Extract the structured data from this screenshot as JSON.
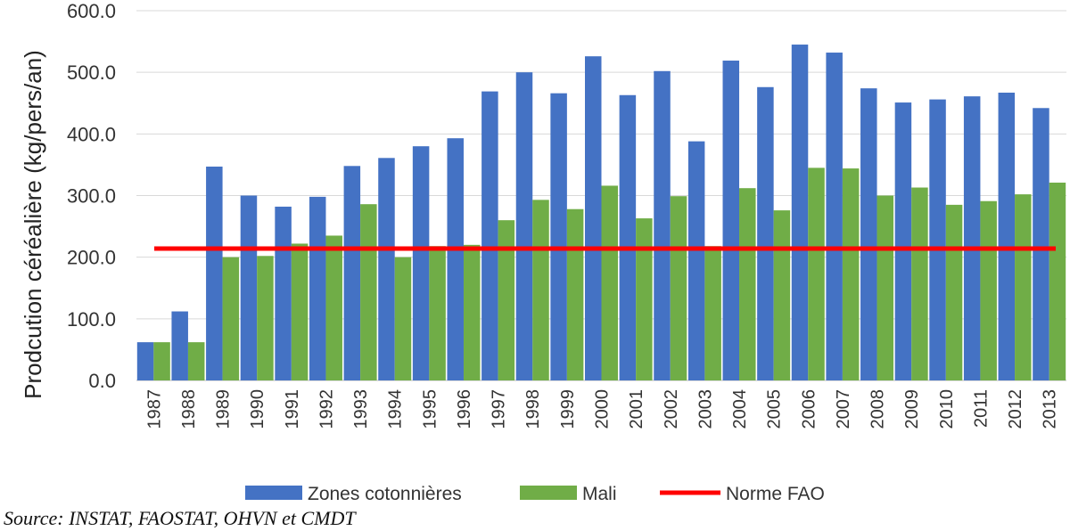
{
  "chart_data": {
    "type": "bar",
    "title": "",
    "xlabel": "",
    "ylabel": "Prodcution céréalière (kg/pers/an)",
    "ylim": [
      0,
      600
    ],
    "yticks": [
      "0.0",
      "100.0",
      "200.0",
      "300.0",
      "400.0",
      "500.0",
      "600.0"
    ],
    "grid": true,
    "legend_position": "bottom",
    "categories": [
      "1987",
      "1988",
      "1989",
      "1990",
      "1991",
      "1992",
      "1993",
      "1994",
      "1995",
      "1996",
      "1997",
      "1998",
      "1999",
      "2000",
      "2001",
      "2002",
      "2003",
      "2004",
      "2005",
      "2006",
      "2007",
      "2008",
      "2009",
      "2010",
      "2011",
      "2012",
      "2013"
    ],
    "series": [
      {
        "name": "Zones cotonnières",
        "color": "#4472C4",
        "values": [
          62,
          112,
          347,
          300,
          282,
          298,
          348,
          361,
          380,
          393,
          469,
          500,
          466,
          526,
          463,
          502,
          388,
          519,
          476,
          545,
          532,
          474,
          451,
          456,
          461,
          467,
          442
        ]
      },
      {
        "name": "Mali",
        "color": "#70AD47",
        "values": [
          62,
          62,
          200,
          202,
          222,
          235,
          286,
          200,
          218,
          220,
          260,
          293,
          278,
          316,
          263,
          299,
          218,
          312,
          276,
          345,
          344,
          300,
          313,
          285,
          291,
          302,
          321
        ]
      }
    ],
    "reference_line": {
      "name": "Norme FAO",
      "value": 214,
      "color": "#FF0000"
    }
  },
  "source": "Source: INSTAT, FAOSTAT, OHVN et CMDT"
}
